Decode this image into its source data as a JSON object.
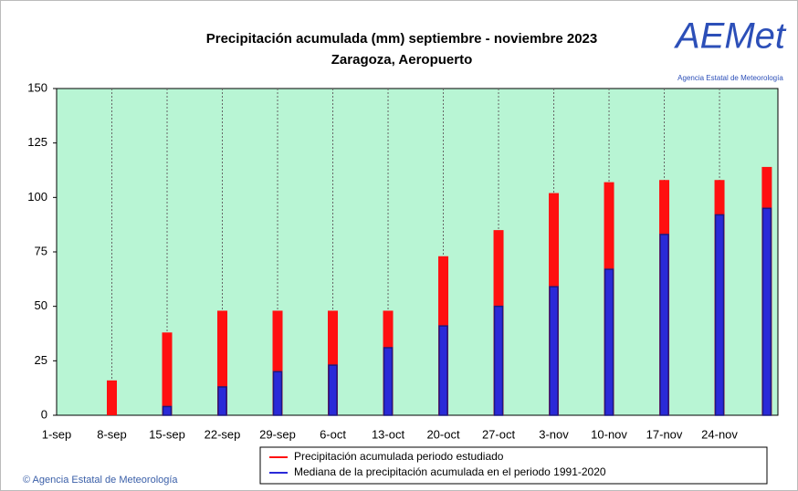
{
  "chart_data": {
    "type": "bar",
    "title": "Precipitación acumulada (mm) septiembre  - noviembre 2023",
    "subtitle": "Zaragoza, Aeropuerto",
    "x": [
      7,
      14,
      21,
      28,
      35,
      42,
      49,
      56,
      63,
      70,
      77,
      84,
      90
    ],
    "series": [
      {
        "name": "Precipitación acumulada periodo estudiado",
        "color": "#ff1010",
        "values": [
          16,
          38,
          48,
          48,
          48,
          48,
          73,
          85,
          102,
          107,
          108,
          108,
          114
        ]
      },
      {
        "name": "Mediana de la precipitación acumulada en el periodo 1991-2020",
        "color": "#2a2ad8",
        "values": [
          0,
          4,
          13,
          20,
          23,
          31,
          41,
          50,
          59,
          67,
          83,
          92,
          95
        ]
      }
    ],
    "xlim": [
      0,
      91.4
    ],
    "xticks": [
      {
        "value": 0,
        "label": "1-sep"
      },
      {
        "value": 7,
        "label": "8-sep"
      },
      {
        "value": 14,
        "label": "15-sep"
      },
      {
        "value": 21,
        "label": "22-sep"
      },
      {
        "value": 28,
        "label": "29-sep"
      },
      {
        "value": 35,
        "label": "6-oct"
      },
      {
        "value": 42,
        "label": "13-oct"
      },
      {
        "value": 49,
        "label": "20-oct"
      },
      {
        "value": 56,
        "label": "27-oct"
      },
      {
        "value": 63,
        "label": "3-nov"
      },
      {
        "value": 70,
        "label": "10-nov"
      },
      {
        "value": 77,
        "label": "17-nov"
      },
      {
        "value": 84,
        "label": "24-nov"
      }
    ],
    "ylim": [
      0,
      150
    ],
    "yticks": [
      0,
      25,
      50,
      75,
      100,
      125,
      150
    ],
    "grid": true,
    "legend": "bottom"
  },
  "logo": {
    "text": "AEMet",
    "caption": "Agencia Estatal de Meteorología"
  },
  "copyright": "© Agencia Estatal de Meteorología"
}
